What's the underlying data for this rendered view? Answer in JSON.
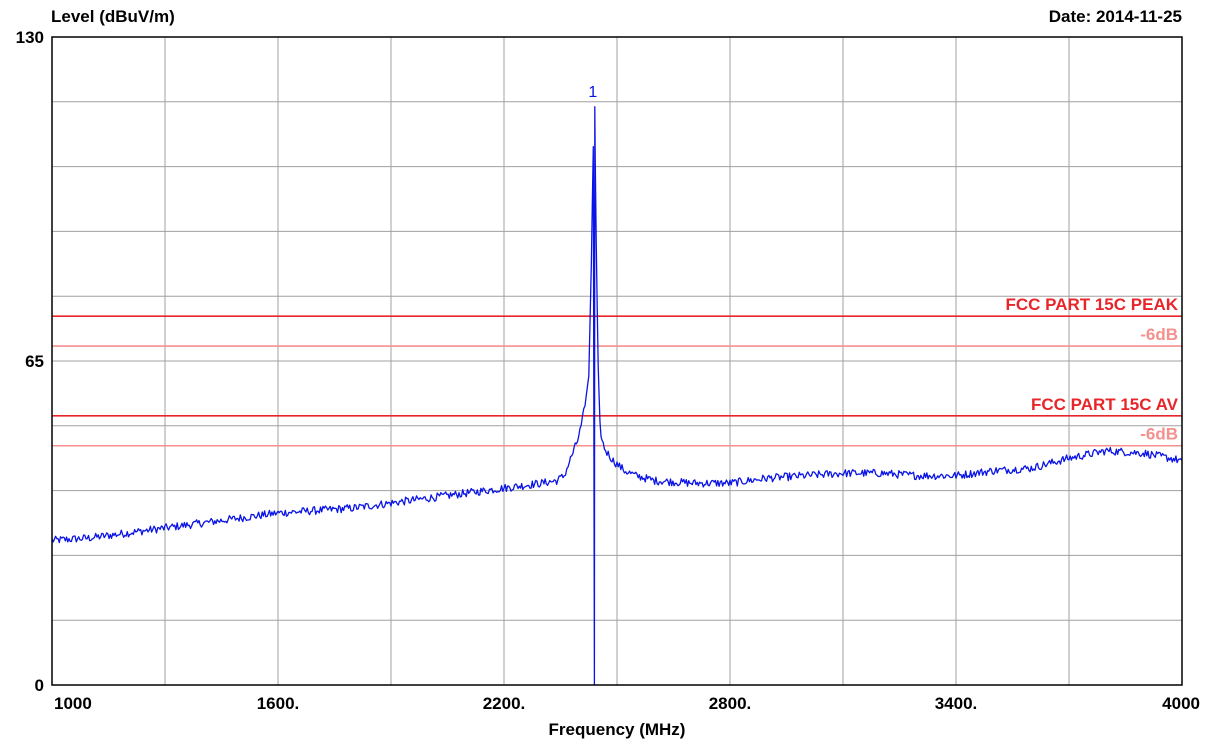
{
  "chart_data": {
    "type": "line",
    "ylabel": "Level (dBuV/m)",
    "xlabel": "Frequency (MHz)",
    "date_label": "Date: 2014-11-25",
    "xlim": [
      1000,
      4000
    ],
    "ylim": [
      0,
      130
    ],
    "x_ticks": [
      1000,
      1600,
      2200,
      2800,
      3400,
      4000
    ],
    "x_tick_labels": [
      "1000",
      "1600.",
      "2200.",
      "2800.",
      "3400.",
      "4000"
    ],
    "y_tick_labels": [
      {
        "value": 130,
        "label": "130"
      },
      {
        "value": 65,
        "label": "65"
      },
      {
        "value": 0,
        "label": "0"
      }
    ],
    "x_grid_step": 300,
    "y_grid_step": 13,
    "grid": true,
    "marker": {
      "label": "1",
      "x": 2441,
      "y": 116
    },
    "limit_lines": [
      {
        "name": "FCC PART 15C  PEAK",
        "value": 74,
        "color": "#e8262a"
      },
      {
        "name": "-6dB",
        "value": 68,
        "color": "#f4908e"
      },
      {
        "name": "FCC PART 15C AV",
        "value": 54,
        "color": "#e8262a"
      },
      {
        "name": "-6dB",
        "value": 48,
        "color": "#f4908e"
      }
    ],
    "series": [
      {
        "color": "#0a14e6",
        "x": [
          1000,
          1100,
          1200,
          1300,
          1400,
          1500,
          1600,
          1700,
          1800,
          1900,
          2000,
          2100,
          2200,
          2250,
          2300,
          2340,
          2360,
          2380,
          2395,
          2405,
          2415,
          2425,
          2432,
          2437,
          2440,
          2441,
          2442,
          2445,
          2450,
          2455,
          2460,
          2470,
          2490,
          2520,
          2550,
          2600,
          2700,
          2800,
          2900,
          3000,
          3100,
          3200,
          3300,
          3400,
          3500,
          3600,
          3700,
          3800,
          3900,
          4000
        ],
        "y": [
          29,
          29.5,
          30.5,
          31.5,
          32.5,
          33.5,
          34.5,
          35,
          35.5,
          36.5,
          37.5,
          38.5,
          39.5,
          40,
          40.5,
          41,
          42,
          46,
          49,
          52,
          56,
          62,
          85,
          108,
          0,
          116,
          106,
          88,
          64,
          52,
          49,
          47,
          45,
          43,
          42,
          41,
          40.5,
          40.5,
          41.5,
          42,
          42.5,
          42.5,
          42,
          42,
          43,
          43.5,
          45.5,
          47,
          46.5,
          45
        ]
      }
    ]
  }
}
